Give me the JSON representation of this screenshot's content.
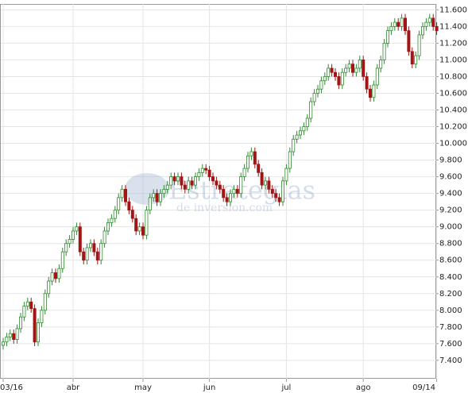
{
  "chart_data": {
    "type": "candlestick",
    "watermark": [
      "Estrategias",
      "de inversion.com"
    ],
    "up_color": "#2e8b2e",
    "down_color": "#a31515",
    "grid": true,
    "ylim": [
      7.18,
      11.67
    ],
    "yticks": [
      {
        "value": 7.4,
        "label": "7.400"
      },
      {
        "value": 7.6,
        "label": "7.600"
      },
      {
        "value": 7.8,
        "label": "7.800"
      },
      {
        "value": 8.0,
        "label": "8.000"
      },
      {
        "value": 8.2,
        "label": "8.200"
      },
      {
        "value": 8.4,
        "label": "8.400"
      },
      {
        "value": 8.6,
        "label": "8.600"
      },
      {
        "value": 8.8,
        "label": "8.800"
      },
      {
        "value": 9.0,
        "label": "9.000"
      },
      {
        "value": 9.2,
        "label": "9.200"
      },
      {
        "value": 9.4,
        "label": "9.400"
      },
      {
        "value": 9.6,
        "label": "9.600"
      },
      {
        "value": 9.8,
        "label": "9.800"
      },
      {
        "value": 10.0,
        "label": "10.000"
      },
      {
        "value": 10.2,
        "label": "10.200"
      },
      {
        "value": 10.4,
        "label": "10.400"
      },
      {
        "value": 10.6,
        "label": "10.600"
      },
      {
        "value": 10.8,
        "label": "10.800"
      },
      {
        "value": 11.0,
        "label": "11.000"
      },
      {
        "value": 11.2,
        "label": "11.200"
      },
      {
        "value": 11.4,
        "label": "11.400"
      },
      {
        "value": 11.6,
        "label": "11.600"
      }
    ],
    "categories": [
      "03/16",
      null,
      null,
      null,
      null,
      null,
      null,
      null,
      null,
      null,
      null,
      null,
      null,
      null,
      null,
      null,
      null,
      null,
      null,
      null,
      "abr",
      null,
      null,
      null,
      null,
      null,
      null,
      null,
      null,
      null,
      null,
      null,
      null,
      null,
      null,
      null,
      null,
      null,
      null,
      null,
      "may",
      null,
      null,
      null,
      null,
      null,
      null,
      null,
      null,
      null,
      null,
      null,
      null,
      null,
      null,
      null,
      null,
      null,
      null,
      "jun",
      null,
      null,
      null,
      null,
      null,
      null,
      null,
      null,
      null,
      null,
      null,
      null,
      null,
      null,
      null,
      null,
      null,
      null,
      null,
      null,
      null,
      "jul",
      null,
      null,
      null,
      null,
      null,
      null,
      null,
      null,
      null,
      null,
      null,
      null,
      null,
      null,
      null,
      null,
      null,
      null,
      null,
      null,
      null,
      "ago",
      null,
      null,
      null,
      null,
      null,
      null,
      null,
      null,
      null,
      null,
      null,
      null,
      null,
      null,
      null,
      null,
      null,
      null,
      null,
      null,
      "09/14"
    ],
    "open": [
      7.58,
      7.62,
      7.68,
      7.72,
      7.65,
      7.78,
      7.92,
      8.05,
      8.1,
      8.02,
      7.62,
      7.85,
      8.0,
      8.2,
      8.35,
      8.45,
      8.38,
      8.5,
      8.7,
      8.8,
      8.85,
      8.95,
      9.0,
      8.7,
      8.6,
      8.75,
      8.8,
      8.7,
      8.6,
      8.8,
      8.95,
      9.05,
      9.1,
      9.2,
      9.35,
      9.45,
      9.3,
      9.2,
      9.1,
      8.95,
      9.0,
      8.9,
      9.2,
      9.35,
      9.4,
      9.3,
      9.4,
      9.45,
      9.5,
      9.6,
      9.55,
      9.6,
      9.5,
      9.45,
      9.55,
      9.5,
      9.6,
      9.65,
      9.7,
      9.68,
      9.6,
      9.55,
      9.5,
      9.45,
      9.35,
      9.3,
      9.4,
      9.45,
      9.4,
      9.6,
      9.7,
      9.85,
      9.9,
      9.75,
      9.65,
      9.5,
      9.55,
      9.45,
      9.4,
      9.35,
      9.3,
      9.55,
      9.7,
      9.9,
      10.05,
      10.1,
      10.15,
      10.2,
      10.3,
      10.5,
      10.6,
      10.65,
      10.75,
      10.8,
      10.9,
      10.85,
      10.8,
      10.7,
      10.85,
      10.9,
      10.95,
      10.85,
      10.9,
      11.0,
      10.8,
      10.65,
      10.55,
      10.7,
      10.9,
      11.0,
      11.2,
      11.35,
      11.4,
      11.45,
      11.4,
      11.5,
      11.35,
      11.1,
      10.95,
      11.05,
      11.3,
      11.4,
      11.45,
      11.5,
      11.4
    ],
    "high": [
      7.67,
      7.73,
      7.77,
      7.77,
      7.83,
      7.97,
      8.1,
      8.15,
      8.15,
      8.07,
      7.9,
      8.05,
      8.25,
      8.4,
      8.5,
      8.5,
      8.55,
      8.75,
      8.85,
      8.9,
      9.0,
      9.05,
      9.05,
      8.75,
      8.8,
      8.85,
      8.85,
      8.75,
      8.85,
      9.0,
      9.1,
      9.15,
      9.25,
      9.4,
      9.5,
      9.5,
      9.35,
      9.25,
      9.15,
      9.05,
      9.05,
      9.25,
      9.4,
      9.45,
      9.45,
      9.45,
      9.5,
      9.55,
      9.65,
      9.65,
      9.65,
      9.65,
      9.55,
      9.6,
      9.6,
      9.65,
      9.7,
      9.75,
      9.75,
      9.73,
      9.65,
      9.6,
      9.55,
      9.5,
      9.4,
      9.45,
      9.5,
      9.5,
      9.65,
      9.75,
      9.9,
      9.95,
      9.95,
      9.8,
      9.7,
      9.6,
      9.6,
      9.5,
      9.45,
      9.4,
      9.6,
      9.75,
      9.95,
      10.1,
      10.15,
      10.2,
      10.25,
      10.35,
      10.55,
      10.65,
      10.7,
      10.8,
      10.85,
      10.95,
      10.95,
      10.9,
      10.85,
      10.9,
      10.95,
      11.0,
      11.0,
      10.95,
      11.05,
      11.05,
      10.85,
      10.7,
      10.75,
      10.95,
      11.05,
      11.25,
      11.4,
      11.45,
      11.5,
      11.5,
      11.55,
      11.55,
      11.4,
      11.15,
      11.1,
      11.35,
      11.45,
      11.5,
      11.55,
      11.55,
      11.45
    ],
    "low": [
      7.53,
      7.57,
      7.63,
      7.6,
      7.6,
      7.73,
      7.87,
      8.0,
      7.97,
      7.57,
      7.57,
      7.8,
      7.95,
      8.15,
      8.3,
      8.33,
      8.33,
      8.45,
      8.65,
      8.75,
      8.8,
      8.9,
      8.65,
      8.55,
      8.55,
      8.7,
      8.65,
      8.55,
      8.55,
      8.75,
      8.9,
      9.0,
      9.05,
      9.15,
      9.3,
      9.25,
      9.15,
      9.05,
      8.9,
      8.9,
      8.85,
      8.85,
      9.15,
      9.3,
      9.25,
      9.25,
      9.35,
      9.4,
      9.45,
      9.5,
      9.5,
      9.45,
      9.4,
      9.4,
      9.45,
      9.45,
      9.55,
      9.6,
      9.63,
      9.55,
      9.5,
      9.45,
      9.4,
      9.3,
      9.25,
      9.25,
      9.35,
      9.35,
      9.35,
      9.55,
      9.65,
      9.8,
      9.7,
      9.6,
      9.45,
      9.45,
      9.4,
      9.35,
      9.3,
      9.25,
      9.25,
      9.5,
      9.65,
      9.85,
      10.0,
      10.05,
      10.1,
      10.15,
      10.25,
      10.45,
      10.55,
      10.6,
      10.7,
      10.75,
      10.8,
      10.75,
      10.65,
      10.65,
      10.8,
      10.85,
      10.8,
      10.8,
      10.85,
      10.75,
      10.6,
      10.5,
      10.5,
      10.65,
      10.85,
      10.95,
      11.15,
      11.3,
      11.35,
      11.35,
      11.35,
      11.3,
      11.05,
      10.9,
      10.9,
      11.0,
      11.25,
      11.35,
      11.4,
      11.35,
      11.3
    ],
    "close": [
      7.62,
      7.68,
      7.72,
      7.65,
      7.78,
      7.92,
      8.05,
      8.1,
      8.02,
      7.62,
      7.85,
      8.0,
      8.2,
      8.35,
      8.45,
      8.38,
      8.5,
      8.7,
      8.8,
      8.85,
      8.95,
      9.0,
      8.7,
      8.6,
      8.75,
      8.8,
      8.7,
      8.6,
      8.8,
      8.95,
      9.05,
      9.1,
      9.2,
      9.35,
      9.45,
      9.3,
      9.2,
      9.1,
      8.95,
      9.0,
      8.9,
      9.2,
      9.35,
      9.4,
      9.3,
      9.4,
      9.45,
      9.5,
      9.6,
      9.55,
      9.6,
      9.5,
      9.45,
      9.55,
      9.5,
      9.6,
      9.65,
      9.7,
      9.68,
      9.6,
      9.55,
      9.5,
      9.45,
      9.35,
      9.3,
      9.4,
      9.45,
      9.4,
      9.6,
      9.7,
      9.85,
      9.9,
      9.75,
      9.65,
      9.5,
      9.55,
      9.45,
      9.4,
      9.35,
      9.3,
      9.55,
      9.7,
      9.9,
      10.05,
      10.1,
      10.15,
      10.2,
      10.3,
      10.5,
      10.6,
      10.65,
      10.75,
      10.8,
      10.9,
      10.85,
      10.8,
      10.7,
      10.85,
      10.9,
      10.95,
      10.85,
      10.9,
      11.0,
      10.8,
      10.65,
      10.55,
      10.7,
      10.9,
      11.0,
      11.2,
      11.35,
      11.4,
      11.45,
      11.4,
      11.5,
      11.35,
      11.1,
      10.95,
      11.05,
      11.3,
      11.4,
      11.45,
      11.5,
      11.4,
      11.35
    ]
  }
}
